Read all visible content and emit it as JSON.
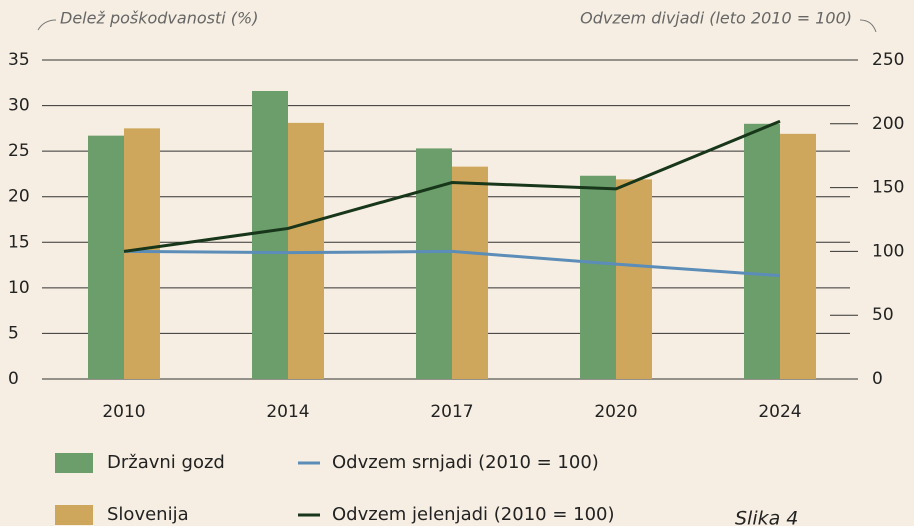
{
  "chart_data": {
    "type": "bar",
    "y_label": "Delež poškodvanosti (%)",
    "y2_label": "Odvzem divjadi (leto 2010 = 100)",
    "annotation": "Slika 4",
    "categories": [
      "2010",
      "2014",
      "2017",
      "2020",
      "2024"
    ],
    "series": [
      {
        "name": "Državni gozd",
        "type": "bar",
        "color": "#6b9e6a",
        "values": [
          26.7,
          31.6,
          25.3,
          22.3,
          28.0
        ]
      },
      {
        "name": "Slovenija",
        "type": "bar",
        "color": "#cfa75c",
        "values": [
          27.5,
          28.1,
          23.3,
          21.9,
          26.9
        ]
      },
      {
        "name": "Odvzem srnjadi (2010 = 100)",
        "type": "line",
        "axis": "y2",
        "color": "#5b8db8",
        "values": [
          100,
          99,
          100,
          90,
          81
        ]
      },
      {
        "name": "Odvzem jelenjadi (2010 = 100)",
        "type": "line",
        "axis": "y2",
        "color": "#17361a",
        "values": [
          100,
          118,
          154,
          149,
          202
        ]
      }
    ],
    "ylim": [
      0,
      35
    ],
    "yticks": [
      0,
      5,
      10,
      15,
      20,
      25,
      30,
      35
    ],
    "y2lim": [
      0,
      250
    ],
    "y2ticks": [
      0,
      50,
      100,
      150,
      200,
      250
    ],
    "grid": true
  }
}
